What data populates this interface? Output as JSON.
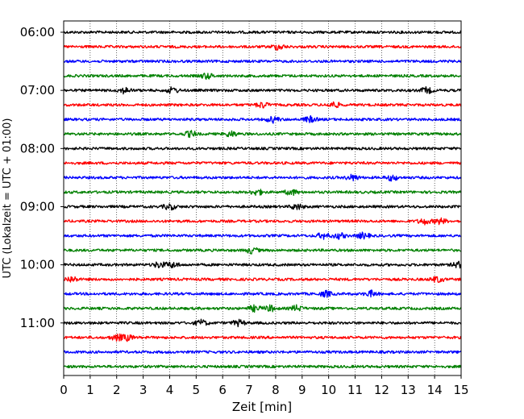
{
  "chart_data": {
    "type": "line",
    "title": "",
    "xlabel": "Zeit  [min]",
    "ylabel": "UTC (Lokalzeit = UTC + 01:00)",
    "xlim": [
      0,
      15
    ],
    "x_ticks": [
      "0",
      "1",
      "2",
      "3",
      "4",
      "5",
      "6",
      "7",
      "8",
      "9",
      "10",
      "11",
      "12",
      "13",
      "14",
      "15"
    ],
    "y_ticks": [
      "06:00",
      "07:00",
      "08:00",
      "09:00",
      "10:00",
      "11:00"
    ],
    "grid": "vertical dotted lines at each minute",
    "trace_interval_min": 15,
    "trace_colors": [
      "#000000",
      "#ff0000",
      "#0000ff",
      "#008000"
    ],
    "series": [
      {
        "start": "06:00",
        "color": "#000000",
        "events_min": []
      },
      {
        "start": "06:15",
        "color": "#ff0000",
        "events_min": [
          8.1
        ]
      },
      {
        "start": "06:30",
        "color": "#0000ff",
        "events_min": []
      },
      {
        "start": "06:45",
        "color": "#008000",
        "events_min": [
          5.4
        ]
      },
      {
        "start": "07:00",
        "color": "#000000",
        "events_min": [
          2.3,
          4.1,
          13.7
        ]
      },
      {
        "start": "07:15",
        "color": "#ff0000",
        "events_min": [
          7.5,
          10.2
        ]
      },
      {
        "start": "07:30",
        "color": "#0000ff",
        "events_min": [
          7.9,
          9.3
        ]
      },
      {
        "start": "07:45",
        "color": "#008000",
        "events_min": [
          4.8,
          6.3
        ]
      },
      {
        "start": "08:00",
        "color": "#000000",
        "events_min": []
      },
      {
        "start": "08:15",
        "color": "#ff0000",
        "events_min": []
      },
      {
        "start": "08:30",
        "color": "#0000ff",
        "events_min": [
          10.9,
          12.4
        ]
      },
      {
        "start": "08:45",
        "color": "#008000",
        "events_min": [
          7.3,
          8.6
        ]
      },
      {
        "start": "09:00",
        "color": "#000000",
        "events_min": [
          4.0,
          8.8
        ]
      },
      {
        "start": "09:15",
        "color": "#ff0000",
        "events_min": [
          13.6,
          14.2
        ]
      },
      {
        "start": "09:30",
        "color": "#0000ff",
        "events_min": [
          9.8,
          10.4,
          11.3
        ]
      },
      {
        "start": "09:45",
        "color": "#008000",
        "events_min": [
          7.1
        ]
      },
      {
        "start": "10:00",
        "color": "#000000",
        "events_min": [
          3.6,
          4.1,
          14.9
        ]
      },
      {
        "start": "10:15",
        "color": "#ff0000",
        "events_min": [
          0.3,
          14.1
        ]
      },
      {
        "start": "10:30",
        "color": "#0000ff",
        "events_min": [
          9.9,
          11.6
        ]
      },
      {
        "start": "10:45",
        "color": "#008000",
        "events_min": [
          7.2,
          7.8,
          8.8
        ]
      },
      {
        "start": "11:00",
        "color": "#000000",
        "events_min": [
          5.2,
          6.6
        ]
      },
      {
        "start": "11:15",
        "color": "#ff0000",
        "events_min": [
          2.0,
          2.4
        ]
      },
      {
        "start": "11:30",
        "color": "#0000ff",
        "events_min": []
      },
      {
        "start": "11:45",
        "color": "#008000",
        "events_min": []
      }
    ]
  }
}
